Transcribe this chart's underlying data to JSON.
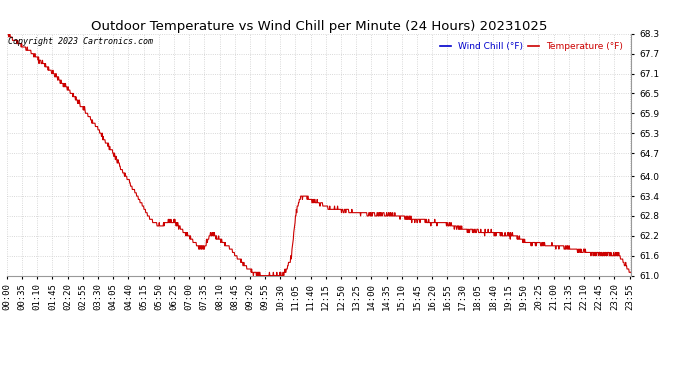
{
  "title": "Outdoor Temperature vs Wind Chill per Minute (24 Hours) 20231025",
  "copyright": "Copyright 2023 Cartronics.com",
  "legend_wind_chill": "Wind Chill (°F)",
  "legend_temperature": "Temperature (°F)",
  "ylim": [
    61.0,
    68.3
  ],
  "yticks": [
    61.0,
    61.6,
    62.2,
    62.8,
    63.4,
    64.0,
    64.7,
    65.3,
    65.9,
    66.5,
    67.1,
    67.7,
    68.3
  ],
  "background_color": "#ffffff",
  "grid_color": "#cccccc",
  "line_color": "#cc0000",
  "wind_chill_color": "#0000cc",
  "temp_color": "#cc0000",
  "title_fontsize": 9.5,
  "tick_fontsize": 6.5,
  "copyright_fontsize": 6,
  "n_minutes": 1440,
  "xtick_step": 35
}
